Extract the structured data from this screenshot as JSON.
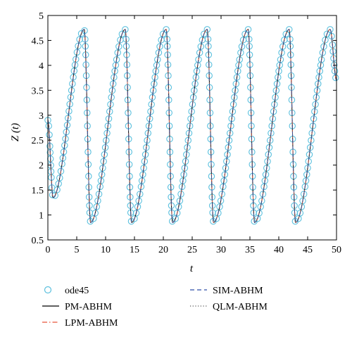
{
  "chart_data": {
    "type": "line",
    "xlabel": "t",
    "ylabel": "Z (t)",
    "xlim": [
      0,
      50
    ],
    "ylim": [
      0.5,
      5
    ],
    "xticks": [
      "0",
      "5",
      "10",
      "15",
      "20",
      "25",
      "30",
      "35",
      "40",
      "45",
      "50"
    ],
    "yticks": [
      "0.5",
      "1",
      "1.5",
      "2",
      "2.5",
      "3",
      "3.5",
      "4",
      "4.5",
      "5"
    ],
    "grid": false,
    "legend_position": "bottom",
    "period": 7.1,
    "peak_times": [
      6.3,
      13.4,
      20.5,
      27.6,
      34.7,
      41.8,
      48.9
    ],
    "trough_times": [
      7.4,
      14.5,
      21.6,
      28.7,
      35.8,
      42.9
    ],
    "initial_point": {
      "t": 0,
      "z": 2.9
    },
    "first_trough": {
      "t": 0.9,
      "z": 1.35
    },
    "peak_value": 4.72,
    "trough_value": 0.85,
    "final_point": {
      "t": 50,
      "z": 3.7
    },
    "series": [
      {
        "name": "ode45",
        "style": "circle-markers",
        "color": "#5bc0de"
      },
      {
        "name": "PM-ABHM",
        "style": "solid",
        "color": "#000000"
      },
      {
        "name": "LPM-ABHM",
        "style": "dash-dot",
        "color": "#e8553a"
      },
      {
        "name": "SIM-ABHM",
        "style": "dashed",
        "color": "#2e4ea6"
      },
      {
        "name": "QLM-ABHM",
        "style": "dotted",
        "color": "#555555"
      }
    ]
  }
}
